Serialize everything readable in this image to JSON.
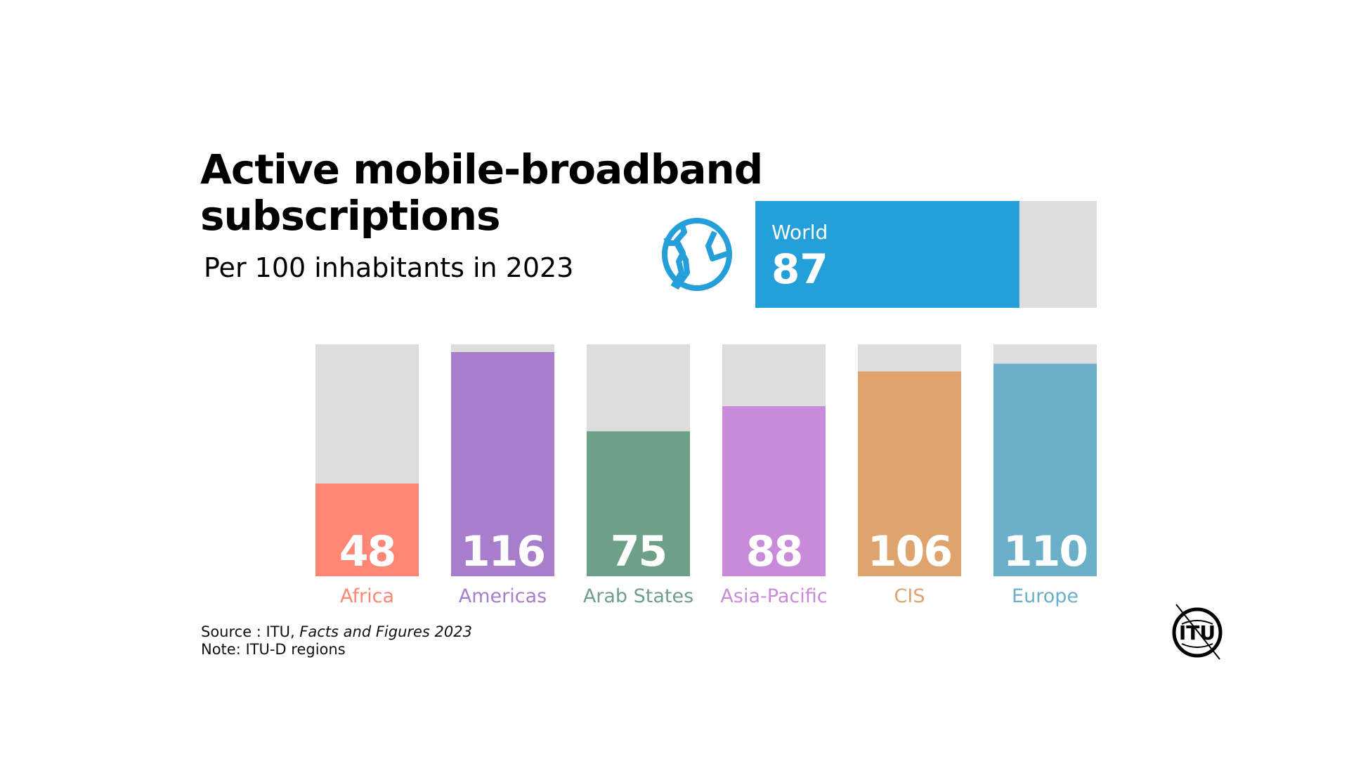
{
  "title_line1": "Active mobile-broadband",
  "title_line2": "subscriptions",
  "subtitle": "Per 100 inhabitants in 2023",
  "world": {
    "label": "World",
    "value": 87,
    "color": "#259FDA",
    "icon": "globe-icon"
  },
  "chart_data": {
    "type": "bar",
    "title": "Active mobile-broadband subscriptions",
    "subtitle": "Per 100 inhabitants in 2023",
    "categories": [
      "Africa",
      "Americas",
      "Arab States",
      "Asia-Pacific",
      "CIS",
      "Europe"
    ],
    "values": [
      48,
      116,
      75,
      88,
      106,
      110
    ],
    "colors": [
      "#FF8673",
      "#A87DCB",
      "#6E9F87",
      "#C98AD9",
      "#DFA46E",
      "#6BAFC8"
    ],
    "background_color": "#DDDDDD",
    "ylim": [
      0,
      120
    ],
    "grid": false,
    "data_labels": true
  },
  "source": {
    "prefix": "Source : ITU, ",
    "title": "Facts and Figures 2023",
    "note": "Note: ITU-D regions"
  },
  "logo": {
    "text": "ITU"
  }
}
